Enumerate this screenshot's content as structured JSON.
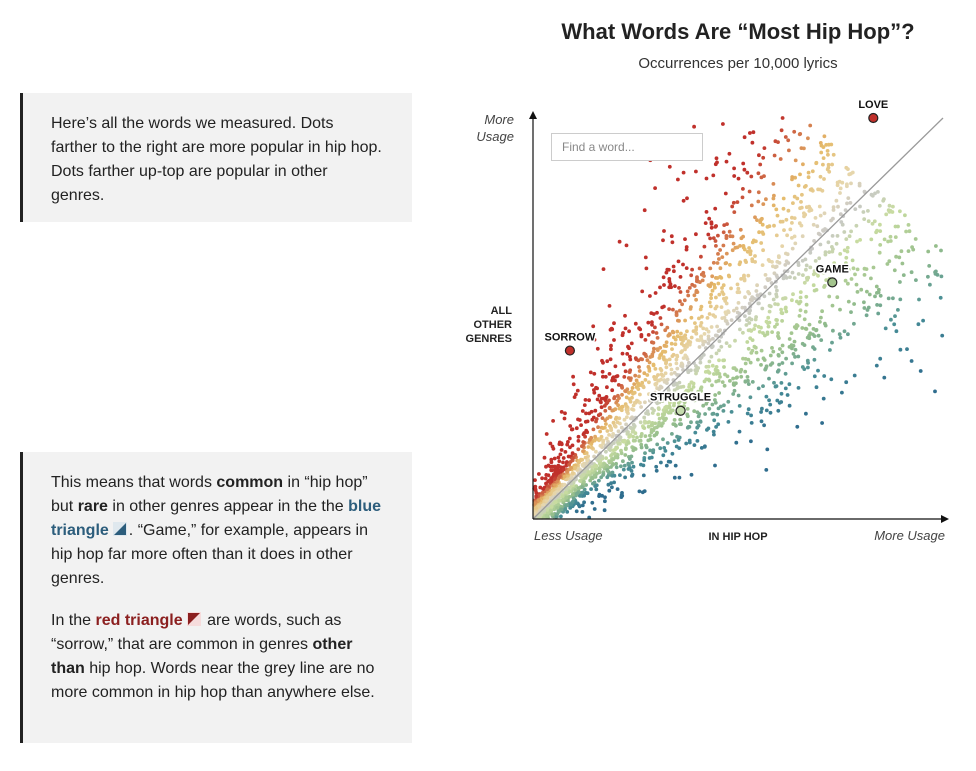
{
  "chart_data": {
    "type": "scatter",
    "title": "What Words Are “Most Hip Hop”?",
    "subtitle": "Occurrences per 10,000 lyrics",
    "xlabel": "IN HIP HOP",
    "ylabel": "ALL OTHER GENRES",
    "x_axis_ends": [
      "Less Usage",
      "More Usage"
    ],
    "y_axis_top": "More Usage",
    "xlim": [
      0,
      100
    ],
    "ylim": [
      0,
      100
    ],
    "grid": false,
    "reference_line": "y = x",
    "color_scale": {
      "common_in_other_genres": "#c0302b",
      "neutral": "#c8c8c8",
      "common_in_hip_hop": "#2f6d8e"
    },
    "highlighted_words": [
      {
        "label": "LOVE",
        "x": 83,
        "y": 100,
        "color": "#c0302b"
      },
      {
        "label": "GAME",
        "x": 73,
        "y": 59,
        "color": "#a3c48d"
      },
      {
        "label": "SORROW",
        "x": 9,
        "y": 42,
        "color": "#c0302b"
      },
      {
        "label": "STRUGGLE",
        "x": 36,
        "y": 27,
        "color": "#c5dcae"
      }
    ],
    "words_measured_approx": 2500
  },
  "search": {
    "placeholder": "Find a word..."
  },
  "notes": {
    "intro": "Here’s all the words we measured. Dots farther to the right are more popular in hip hop. Dots farther up-top are popular in other genres.",
    "explain": {
      "s1": "This means that words ",
      "k1": "common",
      "s2": " in “hip hop” but ",
      "k2": "rare",
      "s3": " in other genres appear in the the ",
      "k3": "blue triangle",
      "s4": ". “Game,” for example, appears in hip hop far more often than it does in other genres."
    },
    "red": {
      "s1": "In the ",
      "k1": "red triangle",
      "s2": " are words, such as “sorrow,” that are common in genres ",
      "k2": "other than",
      "s3": " hip hop. Words near the grey line are no more common in hip hop than anywhere else."
    }
  }
}
